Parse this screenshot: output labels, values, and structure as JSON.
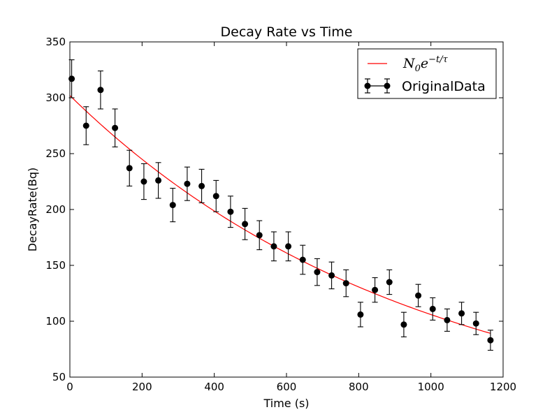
{
  "chart_data": {
    "type": "scatter",
    "title": "Decay Rate vs Time",
    "xlabel": "Time (s)",
    "ylabel": "DecayRate(Bq)",
    "xlim": [
      0,
      1200
    ],
    "ylim": [
      50,
      350
    ],
    "xticks": [
      0,
      200,
      400,
      600,
      800,
      1000,
      1200
    ],
    "yticks": [
      50,
      100,
      150,
      200,
      250,
      300,
      350
    ],
    "grid": false,
    "legend_position": "top-right",
    "series": [
      {
        "name": "OriginalData",
        "kind": "errorbar",
        "color": "#000000",
        "points": [
          {
            "x": 5,
            "y": 317,
            "err": 17
          },
          {
            "x": 45,
            "y": 275,
            "err": 17
          },
          {
            "x": 85,
            "y": 307,
            "err": 17
          },
          {
            "x": 125,
            "y": 273,
            "err": 17
          },
          {
            "x": 165,
            "y": 237,
            "err": 16
          },
          {
            "x": 205,
            "y": 225,
            "err": 16
          },
          {
            "x": 245,
            "y": 226,
            "err": 16
          },
          {
            "x": 285,
            "y": 204,
            "err": 15
          },
          {
            "x": 325,
            "y": 223,
            "err": 15
          },
          {
            "x": 365,
            "y": 221,
            "err": 15
          },
          {
            "x": 405,
            "y": 212,
            "err": 14
          },
          {
            "x": 445,
            "y": 198,
            "err": 14
          },
          {
            "x": 485,
            "y": 187,
            "err": 14
          },
          {
            "x": 525,
            "y": 177,
            "err": 13
          },
          {
            "x": 565,
            "y": 167,
            "err": 13
          },
          {
            "x": 605,
            "y": 167,
            "err": 13
          },
          {
            "x": 645,
            "y": 155,
            "err": 13
          },
          {
            "x": 685,
            "y": 144,
            "err": 12
          },
          {
            "x": 725,
            "y": 141,
            "err": 12
          },
          {
            "x": 765,
            "y": 134,
            "err": 12
          },
          {
            "x": 805,
            "y": 106,
            "err": 11
          },
          {
            "x": 845,
            "y": 128,
            "err": 11
          },
          {
            "x": 885,
            "y": 135,
            "err": 11
          },
          {
            "x": 925,
            "y": 97,
            "err": 11
          },
          {
            "x": 965,
            "y": 123,
            "err": 10
          },
          {
            "x": 1005,
            "y": 111,
            "err": 10
          },
          {
            "x": 1045,
            "y": 101,
            "err": 10
          },
          {
            "x": 1085,
            "y": 107,
            "err": 10
          },
          {
            "x": 1125,
            "y": 98,
            "err": 10
          },
          {
            "x": 1165,
            "y": 83,
            "err": 9
          }
        ]
      },
      {
        "name": "N0e^{-t/τ}",
        "kind": "fit-line",
        "color": "#ff0000",
        "N0": 302,
        "tau": 955,
        "x_range": [
          0,
          1165
        ]
      }
    ],
    "legend": [
      {
        "label": "N",
        "sub": "0",
        "base": "e",
        "sup": "−t/τ"
      },
      {
        "label": "OriginalData"
      }
    ]
  }
}
